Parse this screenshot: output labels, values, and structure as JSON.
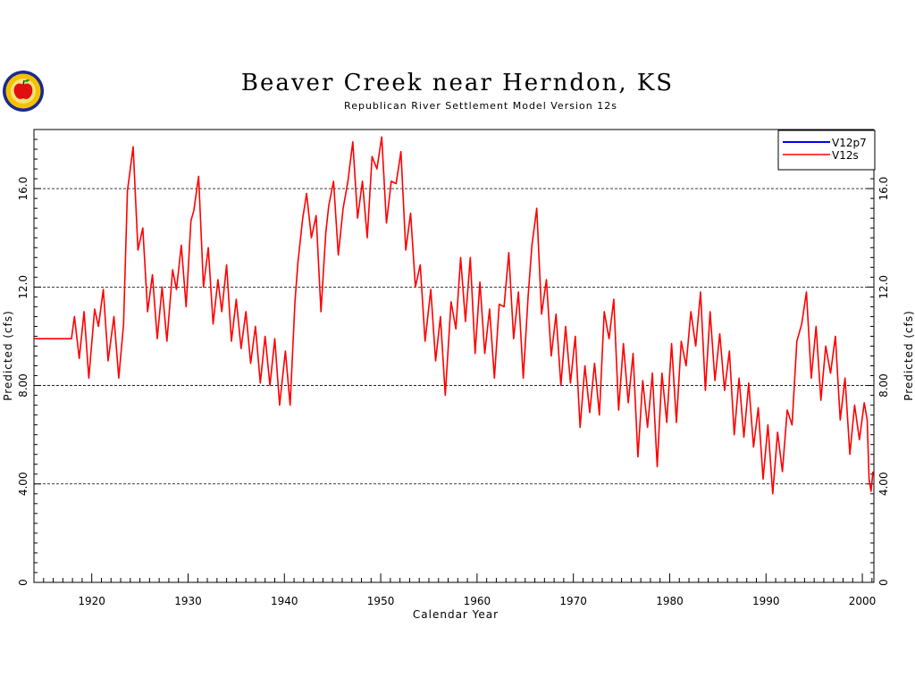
{
  "chart_data": {
    "type": "line",
    "title": "Beaver Creek near Herndon, KS",
    "subtitle": "Republican River Settlement Model Version 12s",
    "xlabel": "Calendar Year",
    "ylabel": "Predicted (cfs)",
    "xlim": [
      1914,
      2001.2
    ],
    "ylim": [
      0,
      18.4
    ],
    "x_ticks": [
      1920,
      1930,
      1940,
      1950,
      1960,
      1970,
      1980,
      1990,
      2000
    ],
    "y_ticks": [
      0,
      4.0,
      8.0,
      12.0,
      16.0
    ],
    "y_tick_labels": [
      "0",
      "4.00",
      "8.00",
      "12.0",
      "16.0"
    ],
    "grid": "horizontal dashed",
    "legend_position": "top-right",
    "series": [
      {
        "name": "V12p7",
        "color": "#0000ff",
        "points": []
      },
      {
        "name": "V12s",
        "color": "#ff0000",
        "points": [
          [
            1914.0,
            9.9
          ],
          [
            1917.9,
            9.9
          ],
          [
            1918.2,
            10.8
          ],
          [
            1918.7,
            9.1
          ],
          [
            1919.2,
            11.0
          ],
          [
            1919.7,
            8.3
          ],
          [
            1920.3,
            11.1
          ],
          [
            1920.7,
            10.4
          ],
          [
            1921.2,
            11.9
          ],
          [
            1921.7,
            9.0
          ],
          [
            1922.3,
            10.8
          ],
          [
            1922.8,
            8.3
          ],
          [
            1923.3,
            10.5
          ],
          [
            1923.7,
            15.9
          ],
          [
            1924.3,
            17.7
          ],
          [
            1924.8,
            13.5
          ],
          [
            1925.3,
            14.4
          ],
          [
            1925.8,
            11.0
          ],
          [
            1926.3,
            12.5
          ],
          [
            1926.8,
            9.9
          ],
          [
            1927.3,
            12.0
          ],
          [
            1927.8,
            9.8
          ],
          [
            1928.4,
            12.7
          ],
          [
            1928.8,
            11.9
          ],
          [
            1929.3,
            13.7
          ],
          [
            1929.8,
            11.2
          ],
          [
            1930.3,
            14.7
          ],
          [
            1930.6,
            15.1
          ],
          [
            1931.1,
            16.5
          ],
          [
            1931.6,
            12.0
          ],
          [
            1932.1,
            13.6
          ],
          [
            1932.6,
            10.5
          ],
          [
            1933.1,
            12.3
          ],
          [
            1933.5,
            11.0
          ],
          [
            1934.0,
            12.9
          ],
          [
            1934.5,
            9.8
          ],
          [
            1935.0,
            11.5
          ],
          [
            1935.5,
            9.5
          ],
          [
            1936.0,
            11.0
          ],
          [
            1936.5,
            8.9
          ],
          [
            1937.0,
            10.4
          ],
          [
            1937.5,
            8.1
          ],
          [
            1938.0,
            10.0
          ],
          [
            1938.5,
            8.0
          ],
          [
            1939.0,
            9.9
          ],
          [
            1939.5,
            7.2
          ],
          [
            1940.1,
            9.4
          ],
          [
            1940.6,
            7.2
          ],
          [
            1941.1,
            11.4
          ],
          [
            1941.4,
            13.0
          ],
          [
            1941.9,
            14.8
          ],
          [
            1942.3,
            15.8
          ],
          [
            1942.8,
            14.0
          ],
          [
            1943.3,
            14.9
          ],
          [
            1943.8,
            11.0
          ],
          [
            1944.3,
            14.2
          ],
          [
            1944.6,
            15.3
          ],
          [
            1945.1,
            16.3
          ],
          [
            1945.6,
            13.3
          ],
          [
            1946.1,
            15.2
          ],
          [
            1946.6,
            16.3
          ],
          [
            1947.1,
            17.9
          ],
          [
            1947.6,
            14.8
          ],
          [
            1948.1,
            16.3
          ],
          [
            1948.6,
            14.0
          ],
          [
            1949.1,
            17.3
          ],
          [
            1949.6,
            16.8
          ],
          [
            1950.1,
            18.1
          ],
          [
            1950.6,
            14.6
          ],
          [
            1951.1,
            16.3
          ],
          [
            1951.6,
            16.2
          ],
          [
            1952.1,
            17.5
          ],
          [
            1952.6,
            13.5
          ],
          [
            1953.1,
            15.0
          ],
          [
            1953.6,
            12.0
          ],
          [
            1954.1,
            12.9
          ],
          [
            1954.6,
            9.8
          ],
          [
            1955.2,
            11.9
          ],
          [
            1955.7,
            9.0
          ],
          [
            1956.2,
            10.8
          ],
          [
            1956.7,
            7.6
          ],
          [
            1957.3,
            11.4
          ],
          [
            1957.8,
            10.3
          ],
          [
            1958.3,
            13.2
          ],
          [
            1958.8,
            10.6
          ],
          [
            1959.3,
            13.2
          ],
          [
            1959.8,
            9.3
          ],
          [
            1960.3,
            12.2
          ],
          [
            1960.8,
            9.3
          ],
          [
            1961.3,
            11.1
          ],
          [
            1961.8,
            8.3
          ],
          [
            1962.3,
            11.3
          ],
          [
            1962.8,
            11.2
          ],
          [
            1963.3,
            13.4
          ],
          [
            1963.8,
            9.9
          ],
          [
            1964.3,
            11.8
          ],
          [
            1964.8,
            8.3
          ],
          [
            1965.3,
            11.6
          ],
          [
            1965.7,
            13.7
          ],
          [
            1966.2,
            15.2
          ],
          [
            1966.7,
            10.9
          ],
          [
            1967.2,
            12.3
          ],
          [
            1967.7,
            9.2
          ],
          [
            1968.2,
            10.9
          ],
          [
            1968.7,
            8.0
          ],
          [
            1969.2,
            10.4
          ],
          [
            1969.7,
            8.1
          ],
          [
            1970.2,
            10.0
          ],
          [
            1970.7,
            6.3
          ],
          [
            1971.2,
            8.8
          ],
          [
            1971.7,
            6.9
          ],
          [
            1972.2,
            8.9
          ],
          [
            1972.7,
            6.8
          ],
          [
            1973.2,
            11.0
          ],
          [
            1973.7,
            9.9
          ],
          [
            1974.2,
            11.5
          ],
          [
            1974.7,
            7.0
          ],
          [
            1975.2,
            9.7
          ],
          [
            1975.7,
            7.3
          ],
          [
            1976.2,
            9.3
          ],
          [
            1976.7,
            5.1
          ],
          [
            1977.2,
            8.2
          ],
          [
            1977.7,
            6.3
          ],
          [
            1978.2,
            8.5
          ],
          [
            1978.7,
            4.7
          ],
          [
            1979.2,
            8.5
          ],
          [
            1979.7,
            6.5
          ],
          [
            1980.2,
            9.7
          ],
          [
            1980.7,
            6.5
          ],
          [
            1981.2,
            9.8
          ],
          [
            1981.7,
            8.8
          ],
          [
            1982.2,
            11.0
          ],
          [
            1982.7,
            9.6
          ],
          [
            1983.2,
            11.8
          ],
          [
            1983.7,
            7.8
          ],
          [
            1984.2,
            11.0
          ],
          [
            1984.7,
            8.2
          ],
          [
            1985.2,
            10.1
          ],
          [
            1985.7,
            7.8
          ],
          [
            1986.2,
            9.4
          ],
          [
            1986.7,
            6.0
          ],
          [
            1987.2,
            8.3
          ],
          [
            1987.7,
            5.9
          ],
          [
            1988.2,
            8.1
          ],
          [
            1988.7,
            5.5
          ],
          [
            1989.2,
            7.1
          ],
          [
            1989.7,
            4.2
          ],
          [
            1990.2,
            6.4
          ],
          [
            1990.7,
            3.6
          ],
          [
            1991.2,
            6.1
          ],
          [
            1991.7,
            4.5
          ],
          [
            1992.2,
            7.0
          ],
          [
            1992.7,
            6.4
          ],
          [
            1993.2,
            9.8
          ],
          [
            1993.7,
            10.5
          ],
          [
            1994.2,
            11.8
          ],
          [
            1994.7,
            8.3
          ],
          [
            1995.2,
            10.4
          ],
          [
            1995.7,
            7.4
          ],
          [
            1996.2,
            9.6
          ],
          [
            1996.7,
            8.5
          ],
          [
            1997.2,
            10.0
          ],
          [
            1997.7,
            6.6
          ],
          [
            1998.2,
            8.3
          ],
          [
            1998.7,
            5.2
          ],
          [
            1999.2,
            7.2
          ],
          [
            1999.7,
            5.8
          ],
          [
            2000.2,
            7.3
          ],
          [
            2000.5,
            6.6
          ],
          [
            2000.7,
            4.2
          ],
          [
            2000.9,
            3.7
          ],
          [
            2001.1,
            4.5
          ]
        ]
      }
    ]
  }
}
